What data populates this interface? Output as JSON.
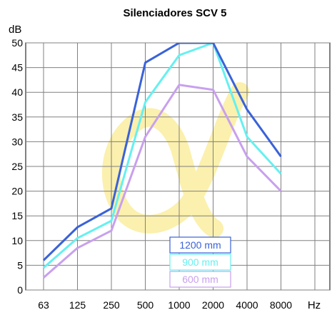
{
  "chart_data": {
    "type": "line",
    "title": "Silenciadores SCV 5",
    "ylabel": "dB",
    "xlabel": "Hz",
    "categories": [
      "63",
      "125",
      "250",
      "500",
      "1000",
      "2000",
      "4000",
      "8000"
    ],
    "ylim": [
      0,
      50
    ],
    "yticks": [
      "0",
      "5",
      "10",
      "15",
      "20",
      "25",
      "30",
      "35",
      "40",
      "45",
      "50"
    ],
    "grid": true,
    "legend_position": "bottom-center",
    "watermark": "alpha-watermark",
    "series": [
      {
        "name": "1200 mm",
        "color": "#3a62d8",
        "values": [
          6,
          12.7,
          16.5,
          46,
          50,
          50,
          36.5,
          27
        ]
      },
      {
        "name": "900 mm",
        "color": "#66f0f0",
        "values": [
          4.5,
          10.5,
          14,
          38,
          47.5,
          50,
          31,
          23.5
        ]
      },
      {
        "name": "600 mm",
        "color": "#c8a0ee",
        "values": [
          2.5,
          8.5,
          12,
          31,
          41.5,
          40.5,
          27,
          20
        ]
      }
    ]
  }
}
